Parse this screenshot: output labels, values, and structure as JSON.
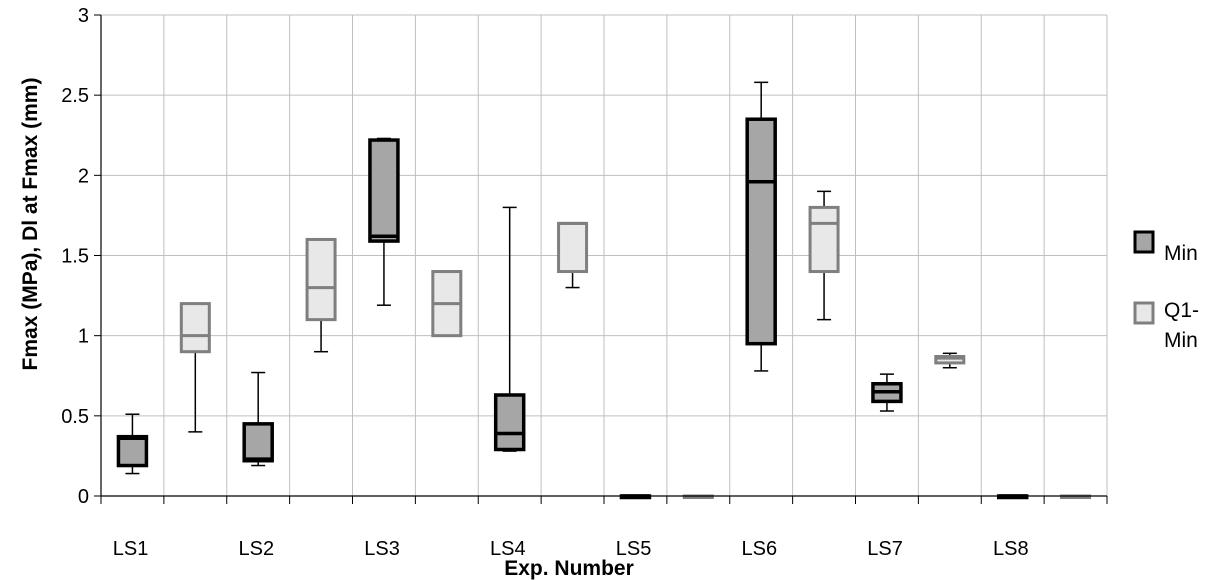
{
  "chart_data": {
    "type": "box",
    "title": "",
    "xlabel": "Exp. Number",
    "ylabel": "Fmax (MPa), Dl at Fmax (mm)",
    "ylim": [
      0,
      3
    ],
    "yticks": [
      0,
      0.5,
      1,
      1.5,
      2,
      2.5,
      3
    ],
    "ytick_labels": [
      "0",
      "0.5",
      "1",
      "1.5",
      "2",
      "2.5",
      "3"
    ],
    "grid": true,
    "legend_position": "right",
    "categories": [
      "LS1",
      "LS2",
      "LS3",
      "LS4",
      "LS5",
      "LS6",
      "LS7",
      "LS8"
    ],
    "series": [
      {
        "name": "Min",
        "color": "#a6a6a6",
        "edge_color": "#000000",
        "boxes": [
          {
            "category": "LS1",
            "min": 0.14,
            "q1": 0.19,
            "median": 0.36,
            "q3": 0.37,
            "max": 0.51
          },
          {
            "category": "LS2",
            "min": 0.19,
            "q1": 0.22,
            "median": 0.23,
            "q3": 0.45,
            "max": 0.77
          },
          {
            "category": "LS3",
            "min": 1.19,
            "q1": 1.59,
            "median": 1.62,
            "q3": 2.22,
            "max": 2.23
          },
          {
            "category": "LS4",
            "min": 0.28,
            "q1": 0.29,
            "median": 0.39,
            "q3": 0.63,
            "max": 1.8
          },
          {
            "category": "LS5",
            "min": 0,
            "q1": 0,
            "median": 0,
            "q3": 0,
            "max": 0
          },
          {
            "category": "LS6",
            "min": 0.78,
            "q1": 0.95,
            "median": 1.96,
            "q3": 2.35,
            "max": 2.58
          },
          {
            "category": "LS7",
            "min": 0.53,
            "q1": 0.59,
            "median": 0.65,
            "q3": 0.7,
            "max": 0.76
          },
          {
            "category": "LS8",
            "min": 0,
            "q1": 0,
            "median": 0,
            "q3": 0,
            "max": 0
          }
        ]
      },
      {
        "name": "Q1-Min",
        "color": "#e8e8e8",
        "edge_color": "#7f7f7f",
        "boxes": [
          {
            "category": "LS1",
            "min": 0.4,
            "q1": 0.9,
            "median": 1.0,
            "q3": 1.2,
            "max": 1.2
          },
          {
            "category": "LS2",
            "min": 0.9,
            "q1": 1.1,
            "median": 1.3,
            "q3": 1.6,
            "max": 1.6
          },
          {
            "category": "LS3",
            "min": 1.0,
            "q1": 1.0,
            "median": 1.2,
            "q3": 1.4,
            "max": 1.4
          },
          {
            "category": "LS4",
            "min": 1.3,
            "q1": 1.4,
            "median": 1.7,
            "q3": 1.7,
            "max": 1.7
          },
          {
            "category": "LS5",
            "min": 0,
            "q1": 0,
            "median": 0,
            "q3": 0,
            "max": 0
          },
          {
            "category": "LS6",
            "min": 1.1,
            "q1": 1.4,
            "median": 1.7,
            "q3": 1.8,
            "max": 1.9
          },
          {
            "category": "LS7",
            "min": 0.8,
            "q1": 0.83,
            "median": 0.86,
            "q3": 0.87,
            "max": 0.89
          },
          {
            "category": "LS8",
            "min": 0,
            "q1": 0,
            "median": 0,
            "q3": 0,
            "max": 0
          }
        ]
      }
    ],
    "legend": {
      "entries": [
        {
          "label": "Min",
          "color": "#a6a6a6",
          "edge_color": "#000000"
        },
        {
          "label_lines": [
            "Q1-",
            "Min"
          ],
          "color": "#e8e8e8",
          "edge_color": "#7f7f7f"
        }
      ]
    }
  }
}
